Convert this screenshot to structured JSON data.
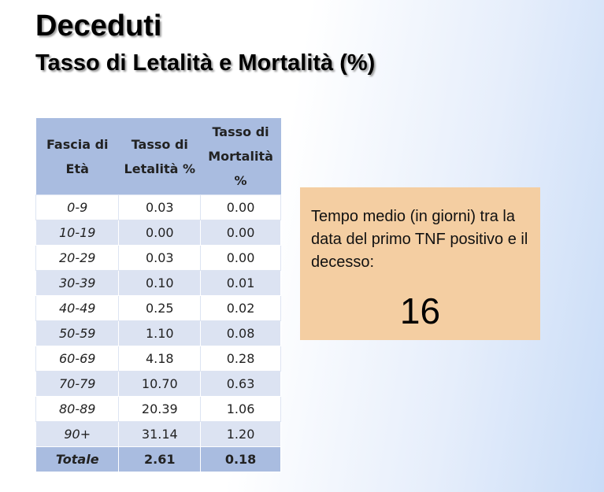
{
  "header": {
    "title": "Deceduti",
    "subtitle": "Tasso di Letalità e Mortalità (%)"
  },
  "table": {
    "columns": [
      "Fascia di Età",
      "Tasso di Letalità %",
      "Tasso di Mortalità %"
    ],
    "rows": [
      [
        "0-9",
        "0.03",
        "0.00"
      ],
      [
        "10-19",
        "0.00",
        "0.00"
      ],
      [
        "20-29",
        "0.03",
        "0.00"
      ],
      [
        "30-39",
        "0.10",
        "0.01"
      ],
      [
        "40-49",
        "0.25",
        "0.02"
      ],
      [
        "50-59",
        "1.10",
        "0.08"
      ],
      [
        "60-69",
        "4.18",
        "0.28"
      ],
      [
        "70-79",
        "10.70",
        "0.63"
      ],
      [
        "80-89",
        "20.39",
        "1.06"
      ],
      [
        "90+",
        "31.14",
        "1.20"
      ]
    ],
    "total": [
      "Totale",
      "2.61",
      "0.18"
    ]
  },
  "note": {
    "text": "Tempo medio (in giorni) tra la data del primo TNF positivo e il decesso:",
    "value": "16"
  }
}
